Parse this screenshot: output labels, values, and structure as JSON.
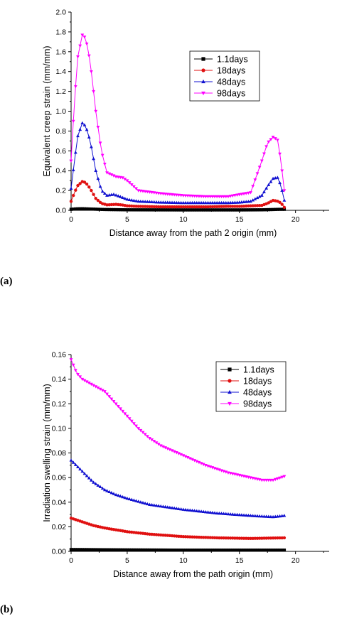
{
  "panel_labels": {
    "a": "(a)",
    "b": "(b)"
  },
  "chart_data": [
    {
      "type": "line",
      "xlabel": "Distance away from the path 2 origin (mm)",
      "ylabel": "Equivalent creep strain (mm/mm)",
      "xlim": [
        0,
        23
      ],
      "ylim": [
        0,
        2.0
      ],
      "xticks": [
        0,
        5,
        10,
        15,
        20
      ],
      "yticks": [
        0.0,
        0.2,
        0.4,
        0.6,
        0.8,
        1.0,
        1.2,
        1.4,
        1.6,
        1.8,
        2.0
      ],
      "yprecision": 1,
      "grid": false,
      "legend": "top-right",
      "series": [
        {
          "name": "1.1days",
          "color": "#000000",
          "marker": "square",
          "points": [
            [
              0,
              0.01
            ],
            [
              0.5,
              0.015
            ],
            [
              1,
              0.016
            ],
            [
              2,
              0.012
            ],
            [
              3,
              0.008
            ],
            [
              5,
              0.005
            ],
            [
              10,
              0.004
            ],
            [
              15,
              0.004
            ],
            [
              17,
              0.005
            ],
            [
              18,
              0.008
            ],
            [
              18.5,
              0.01
            ],
            [
              19,
              0.01
            ]
          ]
        },
        {
          "name": "18days",
          "color": "#e01010",
          "marker": "circle",
          "points": [
            [
              0,
              0.09
            ],
            [
              0.3,
              0.18
            ],
            [
              0.6,
              0.25
            ],
            [
              1,
              0.29
            ],
            [
              1.3,
              0.28
            ],
            [
              1.7,
              0.22
            ],
            [
              2.2,
              0.12
            ],
            [
              2.7,
              0.07
            ],
            [
              3.2,
              0.055
            ],
            [
              4,
              0.06
            ],
            [
              4.5,
              0.055
            ],
            [
              5,
              0.045
            ],
            [
              6,
              0.04
            ],
            [
              8,
              0.035
            ],
            [
              10,
              0.035
            ],
            [
              12,
              0.035
            ],
            [
              14,
              0.04
            ],
            [
              15,
              0.04
            ],
            [
              16,
              0.045
            ],
            [
              17,
              0.05
            ],
            [
              17.5,
              0.07
            ],
            [
              18,
              0.1
            ],
            [
              18.5,
              0.09
            ],
            [
              18.8,
              0.06
            ],
            [
              19,
              0.03
            ]
          ]
        },
        {
          "name": "48days",
          "color": "#1010d0",
          "marker": "triangle-up",
          "points": [
            [
              0,
              0.22
            ],
            [
              0.3,
              0.5
            ],
            [
              0.6,
              0.75
            ],
            [
              1,
              0.88
            ],
            [
              1.3,
              0.85
            ],
            [
              1.7,
              0.7
            ],
            [
              2.2,
              0.4
            ],
            [
              2.7,
              0.2
            ],
            [
              3.2,
              0.15
            ],
            [
              3.8,
              0.16
            ],
            [
              4.3,
              0.14
            ],
            [
              5,
              0.11
            ],
            [
              6,
              0.09
            ],
            [
              8,
              0.08
            ],
            [
              10,
              0.075
            ],
            [
              12,
              0.075
            ],
            [
              14,
              0.075
            ],
            [
              15,
              0.08
            ],
            [
              16,
              0.09
            ],
            [
              17,
              0.15
            ],
            [
              17.5,
              0.24
            ],
            [
              18,
              0.32
            ],
            [
              18.4,
              0.33
            ],
            [
              18.7,
              0.25
            ],
            [
              19,
              0.1
            ]
          ]
        },
        {
          "name": "98days",
          "color": "#ff00ff",
          "marker": "triangle-down",
          "points": [
            [
              0,
              0.5
            ],
            [
              0.3,
              1.1
            ],
            [
              0.6,
              1.55
            ],
            [
              1,
              1.77
            ],
            [
              1.3,
              1.74
            ],
            [
              1.7,
              1.5
            ],
            [
              2.2,
              1.0
            ],
            [
              2.7,
              0.6
            ],
            [
              3.2,
              0.38
            ],
            [
              4,
              0.34
            ],
            [
              4.6,
              0.33
            ],
            [
              5,
              0.3
            ],
            [
              6,
              0.2
            ],
            [
              8,
              0.17
            ],
            [
              10,
              0.15
            ],
            [
              12,
              0.14
            ],
            [
              14,
              0.14
            ],
            [
              15,
              0.16
            ],
            [
              16,
              0.18
            ],
            [
              17,
              0.5
            ],
            [
              17.5,
              0.68
            ],
            [
              18,
              0.74
            ],
            [
              18.4,
              0.71
            ],
            [
              18.7,
              0.5
            ],
            [
              19,
              0.2
            ]
          ]
        }
      ]
    },
    {
      "type": "line",
      "xlabel": "Distance away from the path origin (mm)",
      "ylabel": "Irradiation swelling strain (mm/mm)",
      "xlim": [
        0,
        23
      ],
      "ylim": [
        0,
        0.16
      ],
      "xticks": [
        0,
        5,
        10,
        15,
        20
      ],
      "yticks": [
        0.0,
        0.02,
        0.04,
        0.06,
        0.08,
        0.1,
        0.12,
        0.14,
        0.16
      ],
      "yprecision": 2,
      "grid": false,
      "legend": "top-right",
      "series": [
        {
          "name": "1.1days",
          "color": "#000000",
          "marker": "square",
          "points": [
            [
              0,
              0.0015
            ],
            [
              5,
              0.0012
            ],
            [
              10,
              0.001
            ],
            [
              15,
              0.001
            ],
            [
              19,
              0.001
            ]
          ]
        },
        {
          "name": "18days",
          "color": "#e01010",
          "marker": "circle",
          "points": [
            [
              0,
              0.027
            ],
            [
              1,
              0.024
            ],
            [
              2,
              0.021
            ],
            [
              3,
              0.019
            ],
            [
              5,
              0.016
            ],
            [
              7,
              0.014
            ],
            [
              10,
              0.012
            ],
            [
              13,
              0.011
            ],
            [
              16,
              0.0105
            ],
            [
              19,
              0.011
            ]
          ]
        },
        {
          "name": "48days",
          "color": "#1010d0",
          "marker": "triangle-up",
          "points": [
            [
              0,
              0.074
            ],
            [
              1,
              0.065
            ],
            [
              2,
              0.056
            ],
            [
              3,
              0.05
            ],
            [
              4,
              0.046
            ],
            [
              5,
              0.043
            ],
            [
              7,
              0.038
            ],
            [
              10,
              0.034
            ],
            [
              13,
              0.031
            ],
            [
              16,
              0.029
            ],
            [
              18,
              0.028
            ],
            [
              19,
              0.029
            ]
          ]
        },
        {
          "name": "98days",
          "color": "#ff00ff",
          "marker": "triangle-down",
          "points": [
            [
              0,
              0.156
            ],
            [
              0.5,
              0.145
            ],
            [
              1,
              0.14
            ],
            [
              2,
              0.135
            ],
            [
              3,
              0.13
            ],
            [
              4,
              0.12
            ],
            [
              5,
              0.11
            ],
            [
              6,
              0.1
            ],
            [
              7,
              0.092
            ],
            [
              8,
              0.086
            ],
            [
              10,
              0.078
            ],
            [
              12,
              0.07
            ],
            [
              14,
              0.064
            ],
            [
              16,
              0.06
            ],
            [
              17,
              0.058
            ],
            [
              18,
              0.058
            ],
            [
              19,
              0.061
            ]
          ]
        }
      ]
    }
  ]
}
